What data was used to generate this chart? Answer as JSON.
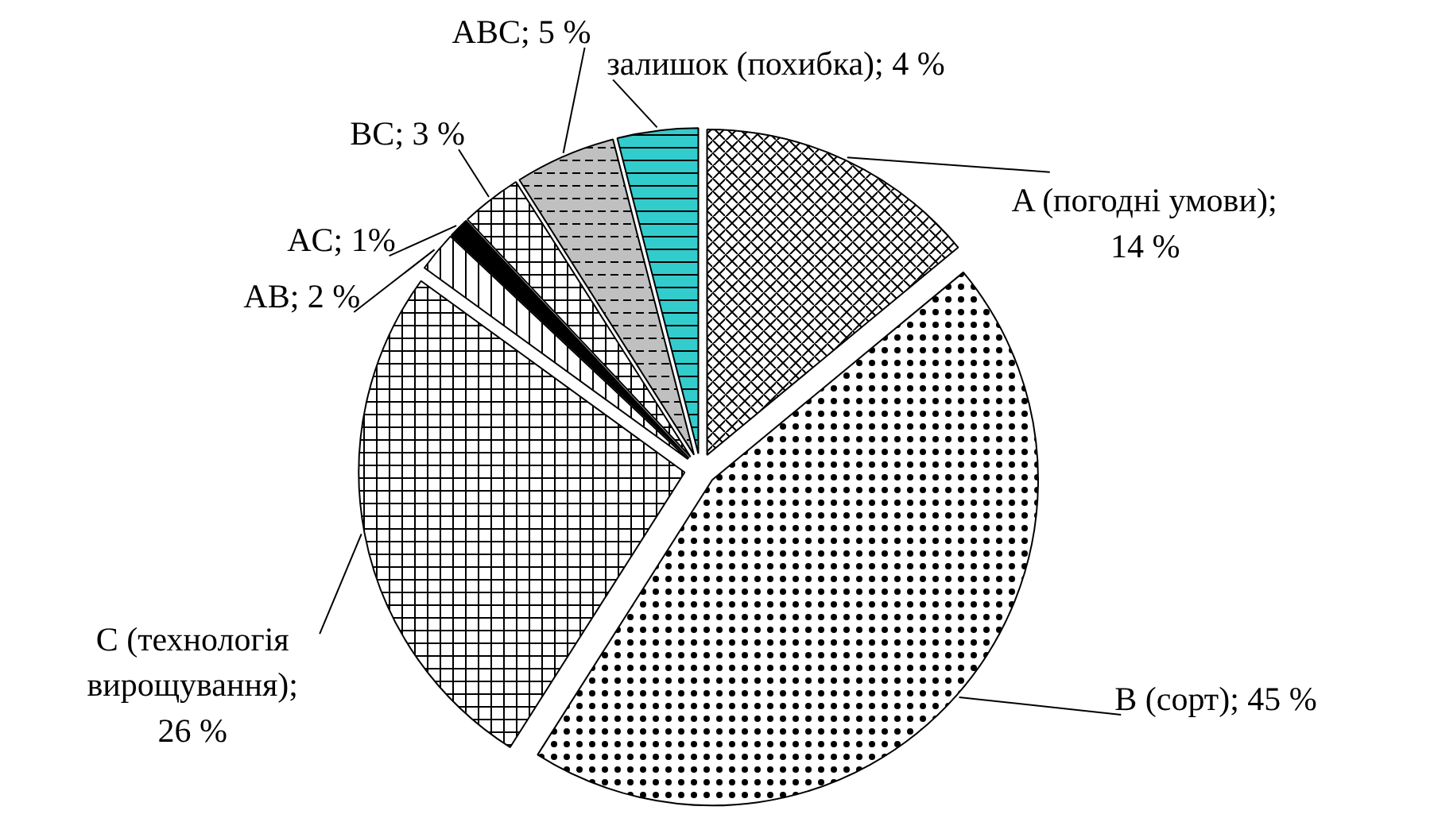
{
  "chart_data": {
    "type": "pie",
    "categories": [
      "A (погодні умови); 14 %",
      "B (сорт); 45 %",
      "C (технологія вирощування); 26 %",
      "AB; 2 %",
      "AC; 1%",
      "BC; 3 %",
      "ABC; 5 %",
      "залишок (похибка); 4 %"
    ],
    "values": [
      14,
      45,
      26,
      2,
      1,
      3,
      5,
      4
    ],
    "colors": [
      "#ffffff",
      "#ffffff",
      "#ffffff",
      "#ffffff",
      "#000000",
      "#ffffff",
      "#c0c0c0",
      "#33cccc"
    ]
  }
}
